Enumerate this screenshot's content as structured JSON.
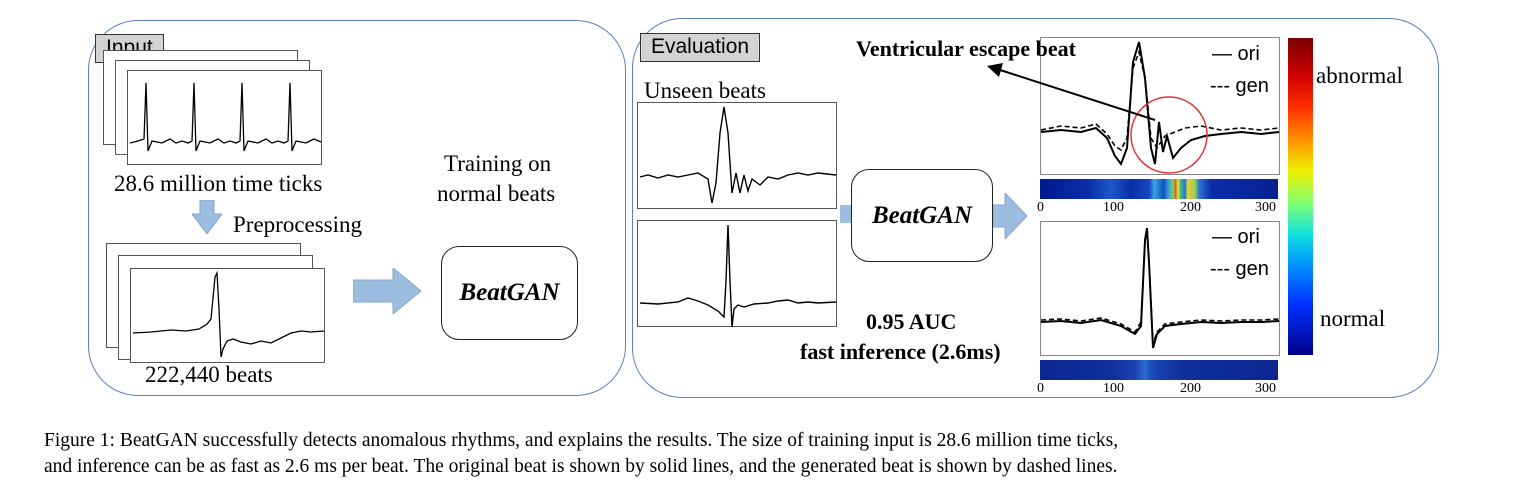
{
  "input_panel": {
    "tag": "Input",
    "time_ticks_label": "28.6 million time ticks",
    "preprocessing_label": "Preprocessing",
    "beats_label": "222,440 beats",
    "training_label_line1": "Training on",
    "training_label_line2": "normal beats",
    "model_label": "BeatGAN"
  },
  "evaluation_panel": {
    "tag": "Evaluation",
    "unseen_label": "Unseen beats",
    "model_label": "BeatGAN",
    "auc_label": "0.95 AUC",
    "inference_label": "fast inference (2.6ms)",
    "annotation": "Ventricular escape beat",
    "legend_ori": "— ori",
    "legend_gen": "--- gen",
    "axis_ticks": [
      "0",
      "100",
      "200",
      "300"
    ],
    "colorbar_top_label": "abnormal",
    "colorbar_bottom_label": "normal"
  },
  "caption": {
    "line1": "Figure 1: BeatGAN successfully detects anomalous rhythms, and explains the results.  The size of training input is 28.6 million time ticks,",
    "line2": "and inference can be as fast as 2.6 ms per beat. The original beat is shown by solid lines, and the generated beat is shown by dashed lines."
  },
  "colors": {
    "panel_border": "#5b7fbf",
    "arrow_fill": "#9dbde0",
    "highlight_circle": "#e03030"
  }
}
